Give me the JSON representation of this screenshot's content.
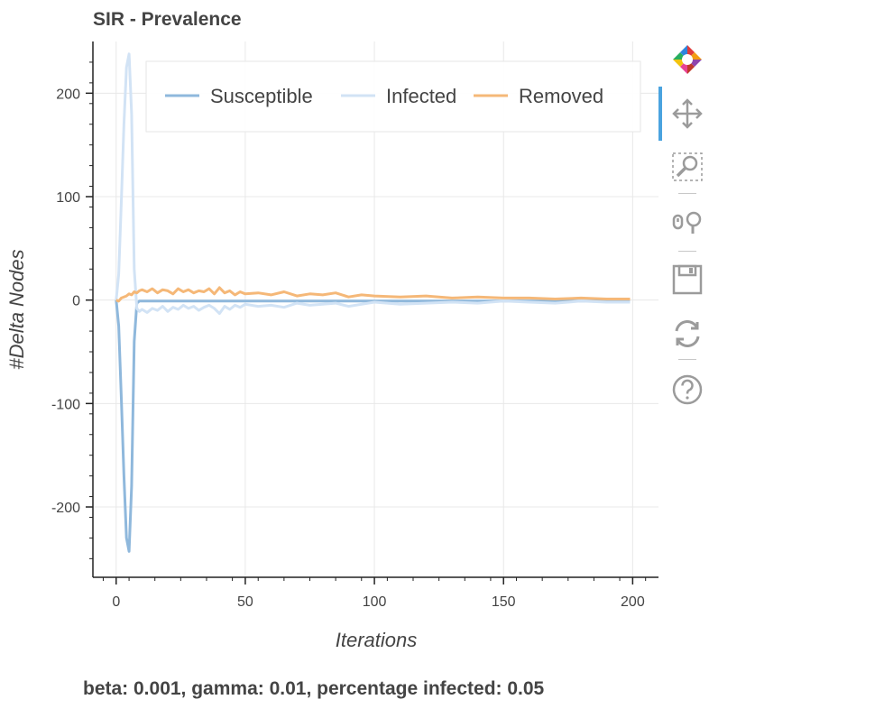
{
  "caption": "beta: 0.001, gamma: 0.01, percentage infected: 0.05",
  "toolbar": {
    "logo_icon": "bokeh-logo-icon",
    "tools": [
      {
        "name": "pan-tool",
        "icon": "move-arrows-icon",
        "active": true
      },
      {
        "name": "box-zoom-tool",
        "icon": "box-zoom-icon",
        "active": false
      },
      {
        "name": "wheel-zoom-tool",
        "icon": "wheel-zoom-icon",
        "active": false
      },
      {
        "name": "save-tool",
        "icon": "save-disk-icon",
        "active": false
      },
      {
        "name": "reset-tool",
        "icon": "reset-icon",
        "active": false
      },
      {
        "name": "help-tool",
        "icon": "help-icon",
        "active": false
      }
    ]
  },
  "chart_data": {
    "type": "line",
    "title": "SIR - Prevalence",
    "xlabel": "Iterations",
    "ylabel": "#Delta Nodes",
    "xlim": [
      -9,
      210
    ],
    "ylim": [
      -268,
      250
    ],
    "xticks": [
      0,
      50,
      100,
      150,
      200
    ],
    "yticks": [
      200,
      100,
      0,
      -100,
      -200
    ],
    "grid": true,
    "legend_position": "top",
    "series": [
      {
        "name": "Susceptible",
        "color": "#8fb8dc",
        "x": [
          0,
          1,
          2,
          3,
          4,
          5,
          6,
          7,
          8,
          9,
          10,
          20,
          40,
          60,
          80,
          100,
          120,
          140,
          160,
          180,
          199
        ],
        "y": [
          0,
          -25,
          -95,
          -170,
          -230,
          -243,
          -180,
          -40,
          -3,
          -1,
          -1,
          -1,
          -1,
          -1,
          -1,
          -1,
          -1,
          -1,
          -1,
          -1,
          -1
        ]
      },
      {
        "name": "Infected",
        "color": "#d2e3f5",
        "x": [
          0,
          1,
          2,
          3,
          4,
          5,
          6,
          7,
          8,
          9,
          10,
          12,
          14,
          16,
          18,
          20,
          22,
          24,
          26,
          28,
          30,
          32,
          34,
          36,
          38,
          40,
          42,
          44,
          46,
          48,
          50,
          55,
          60,
          65,
          70,
          75,
          80,
          85,
          90,
          95,
          100,
          110,
          120,
          130,
          140,
          150,
          160,
          170,
          180,
          190,
          199
        ],
        "y": [
          0,
          25,
          95,
          170,
          225,
          238,
          180,
          30,
          -8,
          -11,
          -9,
          -12,
          -8,
          -10,
          -6,
          -11,
          -7,
          -9,
          -5,
          -8,
          -6,
          -10,
          -7,
          -5,
          -8,
          -13,
          -6,
          -9,
          -5,
          -7,
          -4,
          -6,
          -5,
          -7,
          -3,
          -5,
          -4,
          -3,
          -6,
          -4,
          -2,
          -4,
          -3,
          -2,
          -3,
          -1,
          -2,
          -3,
          -1,
          -2,
          -2
        ]
      },
      {
        "name": "Removed",
        "color": "#f5b878",
        "x": [
          0,
          1,
          2,
          3,
          4,
          5,
          6,
          7,
          8,
          9,
          10,
          12,
          14,
          16,
          18,
          20,
          22,
          24,
          26,
          28,
          30,
          32,
          34,
          36,
          38,
          40,
          42,
          44,
          46,
          48,
          50,
          55,
          60,
          65,
          70,
          75,
          80,
          85,
          90,
          95,
          100,
          110,
          120,
          130,
          140,
          150,
          160,
          170,
          180,
          190,
          199
        ],
        "y": [
          0,
          -1,
          2,
          3,
          4,
          6,
          5,
          8,
          7,
          9,
          10,
          8,
          11,
          7,
          10,
          9,
          6,
          11,
          8,
          10,
          7,
          9,
          8,
          11,
          6,
          12,
          7,
          9,
          5,
          8,
          6,
          7,
          5,
          8,
          4,
          6,
          5,
          7,
          3,
          5,
          4,
          3,
          4,
          2,
          3,
          2,
          2,
          1,
          2,
          1,
          1
        ]
      }
    ]
  }
}
